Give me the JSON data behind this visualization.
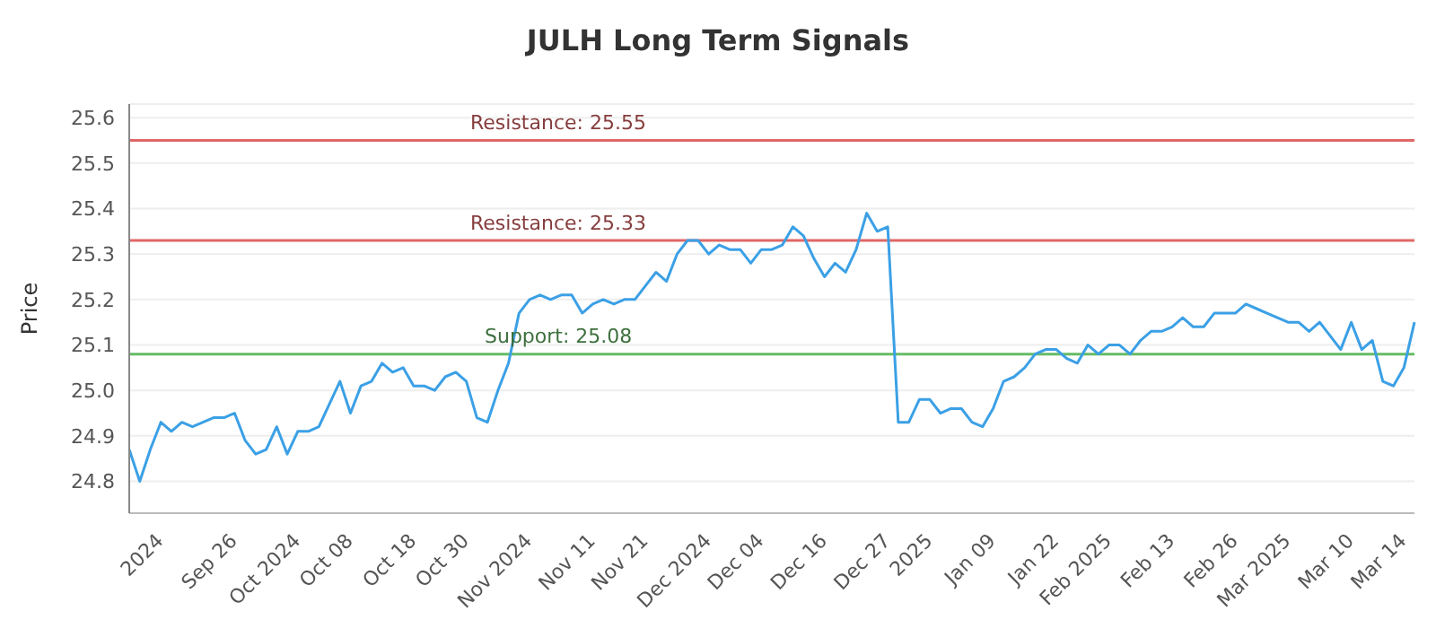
{
  "chart_data": {
    "type": "line",
    "title": "JULH Long Term Signals",
    "ylabel": "Price",
    "categories": [
      null,
      null,
      null,
      "2024",
      null,
      null,
      null,
      null,
      null,
      null,
      "Sep 26",
      null,
      null,
      null,
      null,
      null,
      "Oct 2024",
      null,
      null,
      null,
      null,
      "Oct 08",
      null,
      null,
      null,
      null,
      null,
      "Oct 18",
      null,
      null,
      null,
      null,
      "Oct 30",
      null,
      null,
      null,
      null,
      null,
      "Nov 2024",
      null,
      null,
      null,
      null,
      null,
      "Nov 11",
      null,
      null,
      null,
      null,
      "Nov 21",
      null,
      null,
      null,
      null,
      null,
      "Dec 2024",
      null,
      null,
      null,
      null,
      "Dec 04",
      null,
      null,
      null,
      null,
      null,
      "Dec 16",
      null,
      null,
      null,
      null,
      null,
      "Dec 27",
      null,
      null,
      null,
      "2025",
      null,
      null,
      null,
      null,
      null,
      "Jan 09",
      null,
      null,
      null,
      null,
      null,
      "Jan 22",
      null,
      null,
      null,
      null,
      "Feb 2025",
      null,
      null,
      null,
      null,
      null,
      "Feb 13",
      null,
      null,
      null,
      null,
      null,
      "Feb 26",
      null,
      null,
      null,
      null,
      "Mar 2025",
      null,
      null,
      null,
      null,
      null,
      "Mar 10",
      null,
      null,
      null,
      null,
      "Mar 14",
      null
    ],
    "series": [
      {
        "color": "#3ba0e6",
        "values": [
          24.87,
          24.8,
          24.87,
          24.93,
          24.91,
          24.93,
          24.92,
          24.93,
          24.94,
          24.94,
          24.95,
          24.89,
          24.86,
          24.87,
          24.92,
          24.86,
          24.91,
          24.91,
          24.92,
          24.97,
          25.02,
          24.95,
          25.01,
          25.02,
          25.06,
          25.04,
          25.05,
          25.01,
          25.01,
          25.0,
          25.03,
          25.04,
          25.02,
          24.94,
          24.93,
          25.0,
          25.06,
          25.17,
          25.2,
          25.21,
          25.2,
          25.21,
          25.21,
          25.17,
          25.19,
          25.2,
          25.19,
          25.2,
          25.2,
          25.23,
          25.26,
          25.24,
          25.3,
          25.33,
          25.33,
          25.3,
          25.32,
          25.31,
          25.31,
          25.28,
          25.31,
          25.31,
          25.32,
          25.36,
          25.34,
          25.29,
          25.25,
          25.28,
          25.26,
          25.31,
          25.39,
          25.35,
          25.36,
          24.93,
          24.93,
          24.98,
          24.98,
          24.95,
          24.96,
          24.96,
          24.93,
          24.92,
          24.96,
          25.02,
          25.03,
          25.05,
          25.08,
          25.09,
          25.09,
          25.07,
          25.06,
          25.1,
          25.08,
          25.1,
          25.1,
          25.08,
          25.11,
          25.13,
          25.13,
          25.14,
          25.16,
          25.14,
          25.14,
          25.17,
          25.17,
          25.17,
          25.19,
          25.18,
          25.17,
          25.16,
          25.15,
          25.15,
          25.13,
          25.15,
          25.12,
          25.09,
          25.15,
          25.09,
          25.11,
          25.02,
          25.01,
          25.05,
          25.15
        ]
      }
    ],
    "ylim": [
      24.73,
      25.63
    ],
    "yticks": [
      24.8,
      24.9,
      {
        "value": 25.0,
        "label": "25.0"
      },
      25.1,
      25.2,
      25.3,
      25.4,
      25.5,
      25.6
    ],
    "grid": "y",
    "marker": "none",
    "line_style": "solid",
    "legend": false,
    "ref_lines": [
      {
        "axis": "y",
        "value": 25.55,
        "label": "Resistance: 25.55",
        "color": "#e06666"
      },
      {
        "axis": "y",
        "value": 25.33,
        "label": "Resistance: 25.33",
        "color": "#e06666"
      },
      {
        "axis": "y",
        "value": 25.08,
        "label": "Support: 25.08",
        "color": "#66bb66"
      }
    ]
  }
}
